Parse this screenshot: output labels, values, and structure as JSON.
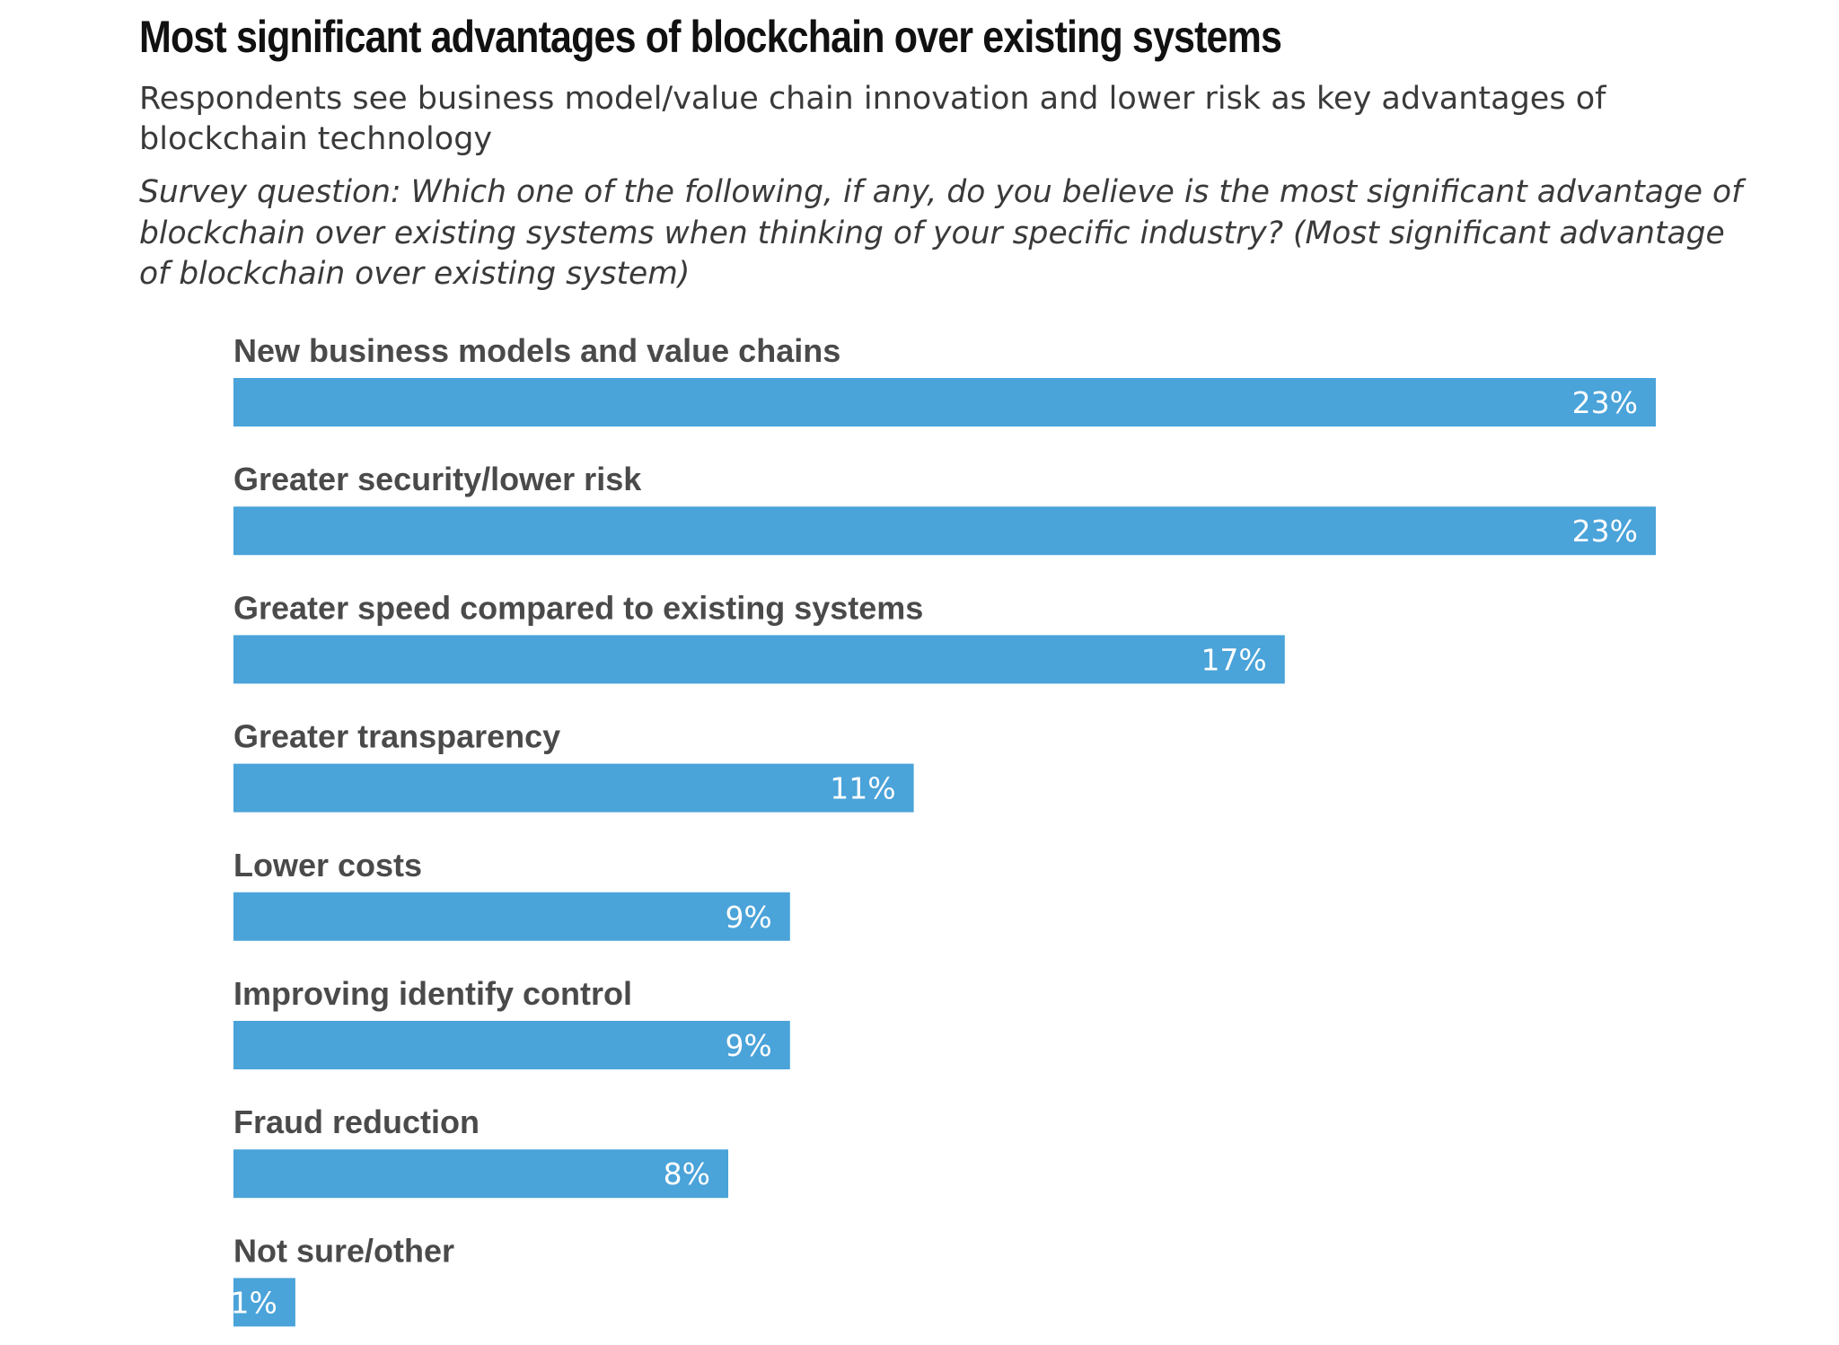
{
  "header": {
    "title": "Most significant advantages of blockchain over existing systems",
    "subtitle": "Respondents see business model/value chain innovation and lower risk as key advantages of blockchain technology",
    "question": "Survey question: Which one of the following, if any, do you believe is the most significant advantage of blockchain over existing systems when thinking of your specific industry? (Most significant advantage of blockchain over existing system)"
  },
  "colors": {
    "bar": "#4aa3d9",
    "bar_label": "#ffffff",
    "category_label": "#4a4a4a"
  },
  "chart_data": {
    "type": "bar",
    "orientation": "horizontal",
    "title": "Most significant advantages of blockchain over existing systems",
    "subtitle": "Respondents see business model/value chain innovation and lower risk as key advantages of blockchain technology",
    "xlabel": "",
    "ylabel": "",
    "unit": "%",
    "xlim": [
      0,
      23
    ],
    "grid": false,
    "legend": "none",
    "categories": [
      "New business models and value chains",
      "Greater security/lower risk",
      "Greater speed compared to existing systems",
      "Greater transparency",
      "Lower costs",
      "Improving identify control",
      "Fraud reduction",
      "Not sure/other"
    ],
    "values": [
      23,
      23,
      17,
      11,
      9,
      9,
      8,
      1
    ],
    "value_labels": [
      "23%",
      "23%",
      "17%",
      "11%",
      "9%",
      "9%",
      "8%",
      "1%"
    ]
  }
}
